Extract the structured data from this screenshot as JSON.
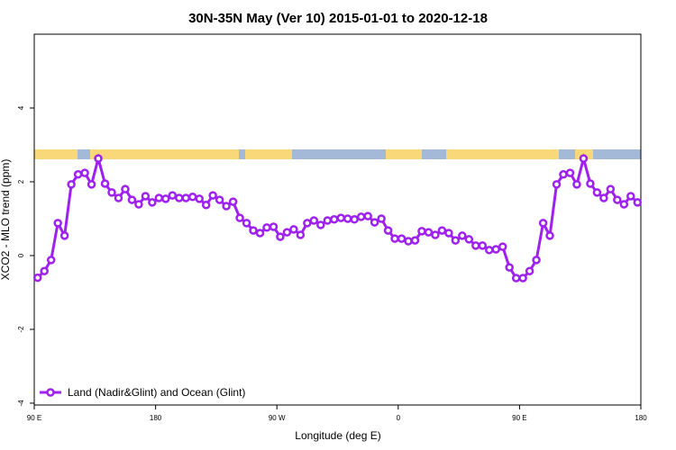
{
  "chart_data": {
    "type": "line",
    "title": "30N-35N May (Ver 10)   2015-01-01 to 2020-12-18",
    "x_label": "Longitude (deg E)",
    "y_label": "XCO2 - MLO trend (ppm)",
    "xlim": [
      90,
      540
    ],
    "ylim": [
      -4.05,
      6
    ],
    "xticks": [
      {
        "value": 90,
        "label": "90 E"
      },
      {
        "value": 180,
        "label": "180"
      },
      {
        "value": 270,
        "label": "90 W"
      },
      {
        "value": 360,
        "label": "0"
      },
      {
        "value": 450,
        "label": "90 E"
      },
      {
        "value": 540,
        "label": "180"
      }
    ],
    "yticks": [
      -4,
      -2,
      0,
      2,
      4
    ],
    "legend_position": "bottom-left",
    "x": [
      92.5,
      97.5,
      102.5,
      107.5,
      112.5,
      117.5,
      122.5,
      127.5,
      132.5,
      137.5,
      142.5,
      147.5,
      152.5,
      157.5,
      162.5,
      167.5,
      172.5,
      177.5,
      182.5,
      187.5,
      192.5,
      197.5,
      202.5,
      207.5,
      212.5,
      217.5,
      222.5,
      227.5,
      232.5,
      237.5,
      242.5,
      247.5,
      252.5,
      257.5,
      262.5,
      267.5,
      272.5,
      277.5,
      282.5,
      287.5,
      292.5,
      297.5,
      302.5,
      307.5,
      312.5,
      317.5,
      322.5,
      327.5,
      332.5,
      337.5,
      342.5,
      347.5,
      352.5,
      357.5,
      362.5,
      367.5,
      372.5,
      377.5,
      382.5,
      387.5,
      392.5,
      397.5,
      402.5,
      407.5,
      412.5,
      417.5,
      422.5,
      427.5,
      432.5,
      437.5,
      442.5,
      447.5,
      452.5,
      457.5,
      462.5,
      467.5,
      472.5,
      477.5,
      482.5,
      487.5,
      492.5,
      497.5,
      502.5,
      507.5,
      512.5,
      517.5,
      522.5,
      527.5,
      532.5,
      537.5
    ],
    "series": [
      {
        "name": "Land (Nadir&Glint) and Ocean (Glint)",
        "color": "#a020f0",
        "values": [
          -0.6,
          -0.42,
          -0.12,
          0.88,
          0.54,
          1.93,
          2.2,
          2.24,
          1.93,
          2.63,
          1.95,
          1.71,
          1.56,
          1.8,
          1.51,
          1.39,
          1.61,
          1.44,
          1.56,
          1.54,
          1.63,
          1.56,
          1.56,
          1.59,
          1.54,
          1.37,
          1.63,
          1.51,
          1.34,
          1.46,
          1.02,
          0.88,
          0.68,
          0.61,
          0.76,
          0.78,
          0.51,
          0.63,
          0.71,
          0.56,
          0.88,
          0.95,
          0.83,
          0.95,
          0.98,
          1.02,
          1.0,
          0.98,
          1.05,
          1.07,
          0.9,
          1.0,
          0.68,
          0.46,
          0.46,
          0.39,
          0.41,
          0.66,
          0.63,
          0.56,
          0.68,
          0.61,
          0.41,
          0.54,
          0.44,
          0.27,
          0.27,
          0.15,
          0.17,
          0.24,
          -0.32,
          -0.61,
          -0.61,
          -0.42,
          -0.12,
          0.88,
          0.54,
          1.93,
          2.2,
          2.24,
          1.93,
          2.63,
          1.95,
          1.71,
          1.56,
          1.8,
          1.51,
          1.39,
          1.61,
          1.44
        ]
      }
    ]
  }
}
